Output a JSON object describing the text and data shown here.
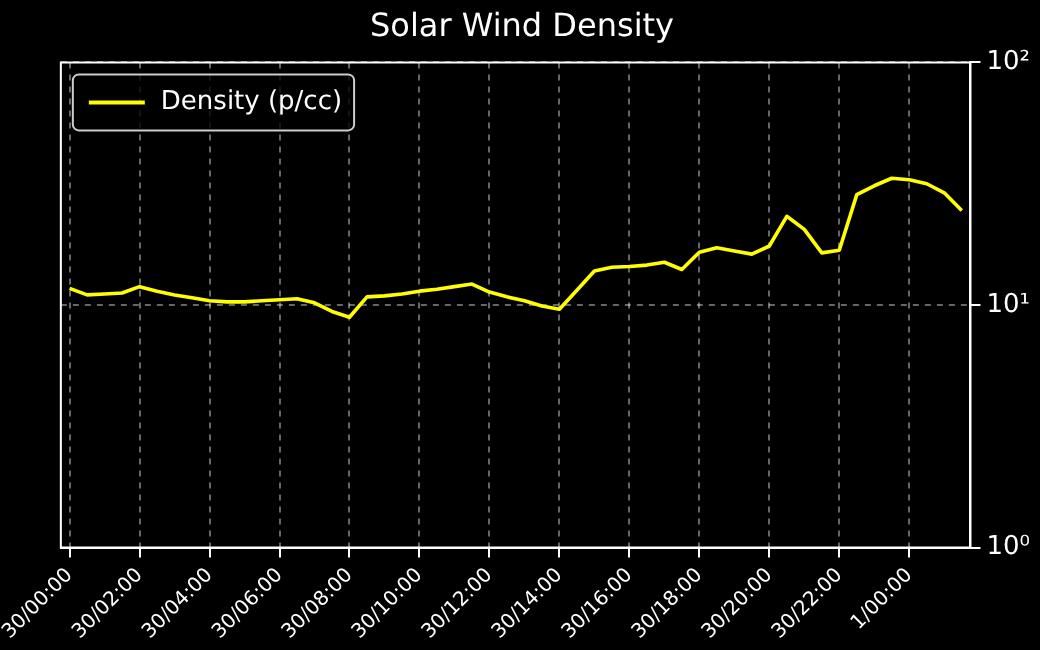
{
  "chart_data": {
    "type": "line",
    "title": "Solar Wind Density",
    "categories": [
      "30/00:00",
      null,
      null,
      null,
      "30/02:00",
      null,
      null,
      null,
      "30/04:00",
      null,
      null,
      null,
      "30/06:00",
      null,
      null,
      null,
      "30/08:00",
      null,
      null,
      null,
      "30/10:00",
      null,
      null,
      null,
      "30/12:00",
      null,
      null,
      null,
      "30/14:00",
      null,
      null,
      null,
      "30/16:00",
      null,
      null,
      null,
      "30/18:00",
      null,
      null,
      null,
      "30/20:00",
      null,
      null,
      null,
      "30/22:00",
      null,
      null,
      null,
      "1/00:00",
      null,
      null,
      null
    ],
    "series": [
      {
        "name": "Density (p/cc)",
        "color": "#ffff00",
        "values": [
          11.7,
          11.0,
          11.1,
          11.2,
          11.9,
          11.4,
          11.0,
          10.7,
          10.4,
          10.3,
          10.3,
          10.4,
          10.5,
          10.6,
          10.2,
          9.4,
          8.9,
          10.8,
          10.9,
          11.1,
          11.4,
          11.6,
          11.9,
          12.2,
          11.3,
          10.8,
          10.4,
          9.9,
          9.6,
          11.5,
          13.8,
          14.3,
          14.4,
          14.6,
          15.0,
          14.0,
          16.5,
          17.2,
          16.7,
          16.2,
          17.5,
          23.2,
          20.5,
          16.4,
          16.8,
          28.5,
          31.0,
          33.3,
          32.8,
          31.6,
          29.0,
          24.5
        ]
      }
    ],
    "ylim": [
      1,
      100
    ],
    "yticks": [
      {
        "value": 1,
        "label": "10⁰"
      },
      {
        "value": 10,
        "label": "10¹"
      },
      {
        "value": 100,
        "label": "10²"
      }
    ],
    "log": "y",
    "grid": true,
    "legend": "top left",
    "marker": "none",
    "line_style": "solid"
  }
}
